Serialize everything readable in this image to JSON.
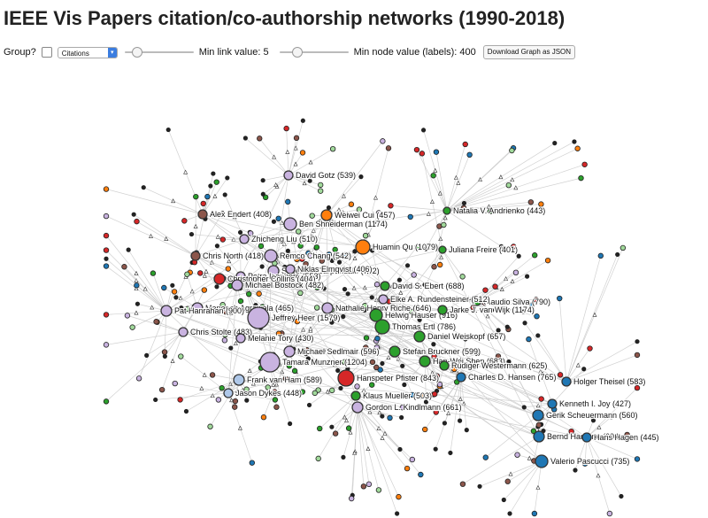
{
  "title": "IEEE Vis Papers citation/co-authorship networks (1990-2018)",
  "controls": {
    "group_label": "Group?",
    "select_value": "Citations",
    "min_link_label": "Min link value: 5",
    "min_link_value": 5,
    "min_node_label": "Min node value (labels): 400",
    "min_node_value": 400,
    "download_label": "Download Graph as JSON"
  },
  "colors": {
    "purple": "#c9b3e0",
    "orange": "#ff7f0e",
    "green": "#2ca02c",
    "blue": "#1f77b4",
    "red": "#d62728",
    "brown": "#8c564b",
    "lightgreen": "#a1d99b",
    "lightblue": "#aec7e8",
    "dark": "#222222"
  },
  "nodes": [
    {
      "label": "David Gotz (539)",
      "c": "purple"
    },
    {
      "label": "Alex Endert (408)",
      "c": "brown"
    },
    {
      "label": "Weiwei Cui (457)",
      "c": "orange"
    },
    {
      "label": "Natalia V. Andrienko (443)",
      "c": "green"
    },
    {
      "label": "Ben Shneiderman (1174)",
      "c": "purple"
    },
    {
      "label": "Zhicheng Liu (510)",
      "c": "purple"
    },
    {
      "label": "Huamin Qu (1079)",
      "c": "orange"
    },
    {
      "label": "Juliana Freire (401)",
      "c": "green"
    },
    {
      "label": "Chris North (418)",
      "c": "brown"
    },
    {
      "label": "Remco Chang (542)",
      "c": "purple"
    },
    {
      "label": "Sheelagh Carpendale (772)",
      "c": "purple"
    },
    {
      "label": "Niklas Elmqvist (406)",
      "c": "purple"
    },
    {
      "label": "Petra Isenberg (553)",
      "c": "purple"
    },
    {
      "label": "Christopher Collins (404)",
      "c": "red"
    },
    {
      "label": "Michael Bostock (482)",
      "c": "purple"
    },
    {
      "label": "David S. Ebert (688)",
      "c": "green"
    },
    {
      "label": "Claudio Silva (790)",
      "c": "green"
    },
    {
      "label": "Maneesh Agrawala (465)",
      "c": "purple"
    },
    {
      "label": "Elke A. Rundensteiner (512)",
      "c": "purple"
    },
    {
      "label": "Nathalie Henry Riche (646)",
      "c": "purple"
    },
    {
      "label": "Helwig Hauser (916)",
      "c": "green"
    },
    {
      "label": "Jarke J. van Wijk (1174)",
      "c": "green"
    },
    {
      "label": "Pat Hanrahan (900)",
      "c": "purple"
    },
    {
      "label": "Jeffrey Heer (1579)",
      "c": "purple"
    },
    {
      "label": "Chris Stolte (483)",
      "c": "purple"
    },
    {
      "label": "Melanie Tory (430)",
      "c": "purple"
    },
    {
      "label": "Thomas Ertl (786)",
      "c": "green"
    },
    {
      "label": "Daniel Weiskopf (657)",
      "c": "green"
    },
    {
      "label": "Michael Sedlmair (596)",
      "c": "purple"
    },
    {
      "label": "Stefan Bruckner (599)",
      "c": "green"
    },
    {
      "label": "Han-Wei Shen (683)",
      "c": "green"
    },
    {
      "label": "Rüdiger Westermann (625)",
      "c": "green"
    },
    {
      "label": "Tamara Munzner (1204)",
      "c": "purple"
    },
    {
      "label": "Frank van Ham (589)",
      "c": "lightblue"
    },
    {
      "label": "Hanspeter Pfister (843)",
      "c": "red"
    },
    {
      "label": "Charles D. Hansen (765)",
      "c": "blue"
    },
    {
      "label": "Holger Theisel (583)",
      "c": "blue"
    },
    {
      "label": "Jason Dykes (448)",
      "c": "lightblue"
    },
    {
      "label": "Klaus Mueller (503)",
      "c": "green"
    },
    {
      "label": "Gordon L. Kindlmann (661)",
      "c": "purple"
    },
    {
      "label": "Kenneth I. Joy (427)",
      "c": "blue"
    },
    {
      "label": "Gerik Scheuermann (560)",
      "c": "blue"
    },
    {
      "label": "Bernd Hamann (604)",
      "c": "blue"
    },
    {
      "label": "Hans Hagen (445)",
      "c": "blue"
    },
    {
      "label": "Valerio Pascucci (735)",
      "c": "blue"
    }
  ]
}
